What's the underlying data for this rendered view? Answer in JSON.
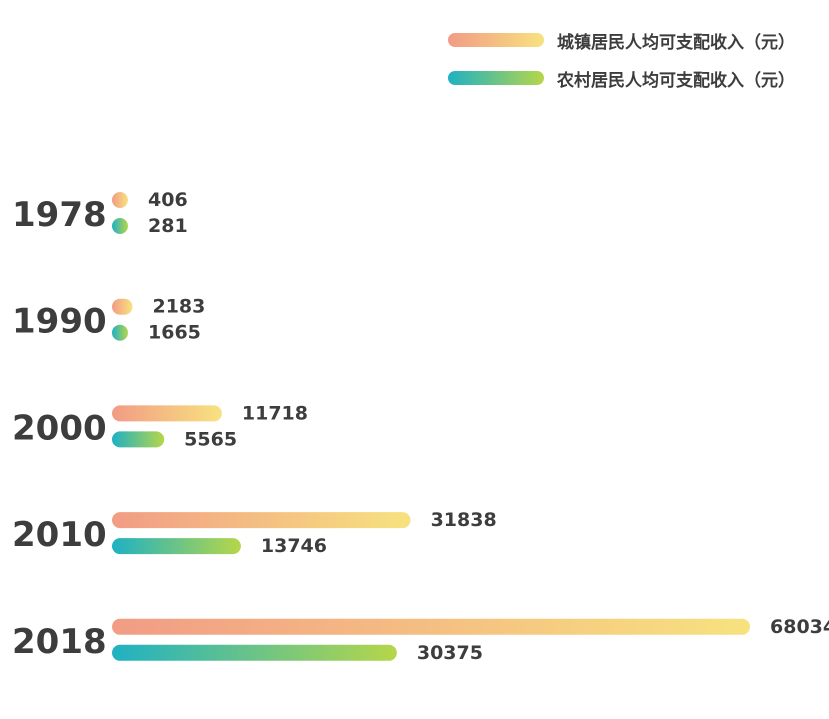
{
  "chart_data": {
    "type": "bar",
    "orientation": "horizontal",
    "categories": [
      "1978",
      "1990",
      "2000",
      "2010",
      "2018"
    ],
    "series": [
      {
        "name": "城镇居民人均可支配收入（元）",
        "values": [
          406,
          2183,
          11718,
          31838,
          68034
        ],
        "color_start": "#f29c85",
        "color_end": "#f7e27f"
      },
      {
        "name": "农村居民人均可支配收入（元）",
        "values": [
          281,
          1665,
          5565,
          13746,
          30375
        ],
        "color_start": "#1fb1c3",
        "color_end": "#b6d64a"
      }
    ],
    "legend_position": "top-right",
    "grid": false,
    "value_labels": true
  }
}
